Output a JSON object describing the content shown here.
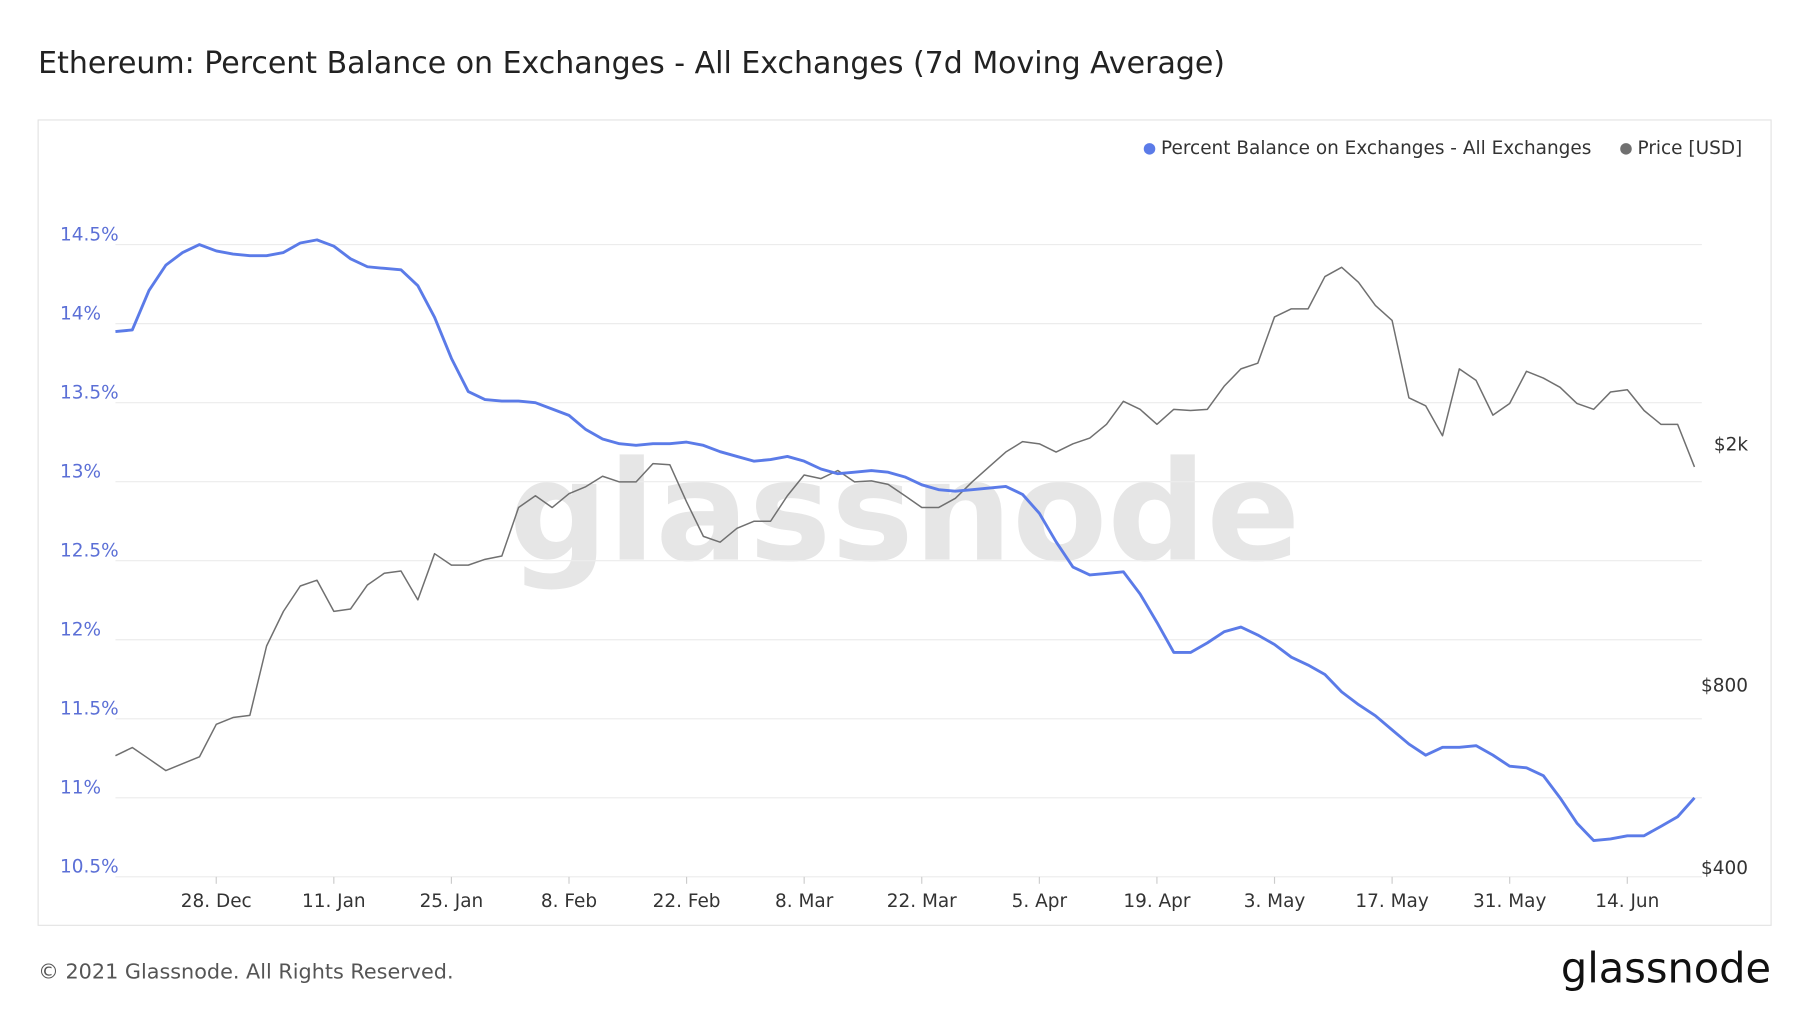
{
  "chart_data": {
    "type": "line",
    "title": "Ethereum: Percent Balance on Exchanges - All Exchanges (7d Moving Average)",
    "watermark": "glassnode",
    "footer": "© 2021 Glassnode. All Rights Reserved.",
    "logo": "glassnode",
    "legend": "top-right",
    "grid": true,
    "y2scale": "log",
    "x": [
      "16. Dec",
      "18. Dec",
      "20. Dec",
      "22. Dec",
      "24. Dec",
      "26. Dec",
      "28. Dec",
      "30. Dec",
      "1. Jan",
      "3. Jan",
      "5. Jan",
      "7. Jan",
      "9. Jan",
      "11. Jan",
      "13. Jan",
      "15. Jan",
      "17. Jan",
      "19. Jan",
      "21. Jan",
      "23. Jan",
      "25. Jan",
      "27. Jan",
      "29. Jan",
      "31. Jan",
      "2. Feb",
      "4. Feb",
      "6. Feb",
      "8. Feb",
      "10. Feb",
      "12. Feb",
      "14. Feb",
      "16. Feb",
      "18. Feb",
      "20. Feb",
      "22. Feb",
      "24. Feb",
      "26. Feb",
      "28. Feb",
      "2. Mar",
      "4. Mar",
      "6. Mar",
      "8. Mar",
      "10. Mar",
      "12. Mar",
      "14. Mar",
      "16. Mar",
      "18. Mar",
      "20. Mar",
      "22. Mar",
      "24. Mar",
      "26. Mar",
      "28. Mar",
      "30. Mar",
      "1. Apr",
      "3. Apr",
      "5. Apr",
      "7. Apr",
      "9. Apr",
      "11. Apr",
      "13. Apr",
      "15. Apr",
      "17. Apr",
      "19. Apr",
      "21. Apr",
      "23. Apr",
      "25. Apr",
      "27. Apr",
      "29. Apr",
      "1. May",
      "3. May",
      "5. May",
      "7. May",
      "9. May",
      "11. May",
      "13. May",
      "15. May",
      "17. May",
      "19. May",
      "21. May",
      "23. May",
      "25. May",
      "27. May",
      "29. May",
      "31. May",
      "2. Jun",
      "4. Jun",
      "6. Jun",
      "8. Jun",
      "10. Jun",
      "12. Jun",
      "14. Jun",
      "16. Jun",
      "18. Jun",
      "20. Jun",
      "22. Jun"
    ],
    "xticks": [
      "28. Dec",
      "11. Jan",
      "25. Jan",
      "8. Feb",
      "22. Feb",
      "8. Mar",
      "22. Mar",
      "5. Apr",
      "19. Apr",
      "3. May",
      "17. May",
      "31. May",
      "14. Jun"
    ],
    "ylim": [
      10.5,
      15
    ],
    "yticks": [
      {
        "value": 10.5,
        "label": "10.5%"
      },
      {
        "value": 11,
        "label": "11%"
      },
      {
        "value": 11.5,
        "label": "11.5%"
      },
      {
        "value": 12,
        "label": "12%"
      },
      {
        "value": 12.5,
        "label": "12.5%"
      },
      {
        "value": 13,
        "label": "13%"
      },
      {
        "value": 13.5,
        "label": "13.5%"
      },
      {
        "value": 14,
        "label": "14%"
      },
      {
        "value": 14.5,
        "label": "14.5%"
      }
    ],
    "y2lim": [
      400,
      5970
    ],
    "y2ticks": [
      {
        "value": 400,
        "label": "$400"
      },
      {
        "value": 800,
        "label": "$800"
      },
      {
        "value": 2000,
        "label": "$2k"
      }
    ],
    "series": [
      {
        "name": "Percent Balance on Exchanges - All Exchanges",
        "color": "#5b7be8",
        "values": [
          13.95,
          13.96,
          14.21,
          14.37,
          14.45,
          14.5,
          14.46,
          14.44,
          14.43,
          14.43,
          14.45,
          14.51,
          14.53,
          14.49,
          14.41,
          14.36,
          14.35,
          14.34,
          14.24,
          14.04,
          13.78,
          13.57,
          13.52,
          13.51,
          13.51,
          13.5,
          13.46,
          13.42,
          13.33,
          13.27,
          13.24,
          13.23,
          13.24,
          13.24,
          13.25,
          13.23,
          13.19,
          13.16,
          13.13,
          13.14,
          13.16,
          13.13,
          13.08,
          13.05,
          13.06,
          13.07,
          13.06,
          13.03,
          12.98,
          12.95,
          12.94,
          12.95,
          12.96,
          12.97,
          12.92,
          12.8,
          12.62,
          12.46,
          12.41,
          12.42,
          12.43,
          12.29,
          12.11,
          11.92,
          11.92,
          11.98,
          12.05,
          12.08,
          12.03,
          11.97,
          11.89,
          11.84,
          11.78,
          11.67,
          11.59,
          11.52,
          11.43,
          11.34,
          11.27,
          11.32,
          11.32,
          11.33,
          11.27,
          11.2,
          11.19,
          11.14,
          11.0,
          10.84,
          10.73,
          10.74,
          10.76,
          10.76,
          10.82,
          10.88,
          11.0
        ]
      },
      {
        "name": "Price [USD]",
        "color": "#707070",
        "axis": "y2",
        "values": [
          634,
          654,
          626,
          599,
          615,
          631,
          714,
          733,
          739,
          962,
          1097,
          1208,
          1235,
          1097,
          1107,
          1213,
          1268,
          1279,
          1146,
          1366,
          1308,
          1308,
          1337,
          1354,
          1628,
          1702,
          1628,
          1716,
          1762,
          1833,
          1794,
          1794,
          1924,
          1915,
          1664,
          1459,
          1427,
          1504,
          1545,
          1545,
          1702,
          1842,
          1817,
          1874,
          1794,
          1801,
          1778,
          1702,
          1628,
          1628,
          1686,
          1794,
          1899,
          2010,
          2091,
          2073,
          2010,
          2073,
          2119,
          2233,
          2438,
          2364,
          2233,
          2364,
          2354,
          2364,
          2581,
          2757,
          2817,
          3359,
          3463,
          3463,
          3916,
          4056,
          3830,
          3509,
          3315,
          2470,
          2396,
          2138,
          2757,
          2639,
          2313,
          2417,
          2732,
          2662,
          2570,
          2417,
          2364,
          2525,
          2547,
          2354,
          2233,
          2233,
          1899
        ]
      }
    ]
  }
}
